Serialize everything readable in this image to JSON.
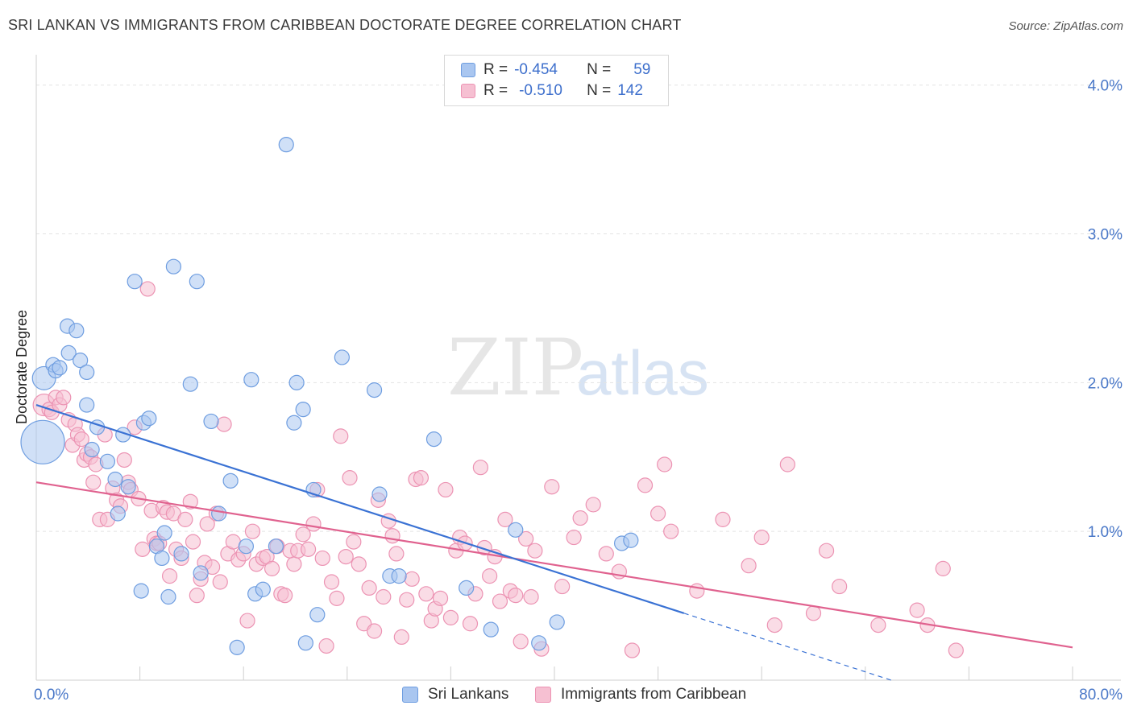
{
  "header": {
    "title": "SRI LANKAN VS IMMIGRANTS FROM CARIBBEAN DOCTORATE DEGREE CORRELATION CHART",
    "source": "Source: ZipAtlas.com"
  },
  "legend": {
    "series1": {
      "r_label": "R =",
      "r_value": "-0.454",
      "n_label": "N =",
      "n_value": "59"
    },
    "series2": {
      "r_label": "R =",
      "r_value": "-0.510",
      "n_label": "N =",
      "n_value": "142"
    }
  },
  "bottom_legend": {
    "series1": "Sri Lankans",
    "series2": "Immigrants from Caribbean"
  },
  "colors": {
    "blue_fill": "#a9c6f0",
    "blue_stroke": "#6e9de0",
    "blue_line": "#3a72d4",
    "pink_fill": "#f6c0d2",
    "pink_stroke": "#ec93b3",
    "pink_line": "#e0628f",
    "tick": "#4a78c8"
  },
  "watermark": {
    "zip": "ZIP",
    "atlas": "atlas"
  },
  "chart_data": {
    "type": "scatter",
    "title": "SRI LANKAN VS IMMIGRANTS FROM CARIBBEAN DOCTORATE DEGREE CORRELATION CHART",
    "xlabel": "",
    "ylabel": "Doctorate Degree",
    "xlim": [
      0,
      80
    ],
    "ylim": [
      0,
      4.15
    ],
    "x_tick_labels": [
      "0.0%",
      "80.0%"
    ],
    "y_ticks": [
      1,
      2,
      3,
      4
    ],
    "y_tick_labels": [
      "1.0%",
      "2.0%",
      "3.0%",
      "4.0%"
    ],
    "grid": true,
    "series": [
      {
        "name": "Sri Lankans",
        "r": -0.454,
        "n": 59,
        "trend": {
          "x0": 0,
          "y0": 1.85,
          "x1": 50,
          "y1": 0.45,
          "dash_to_x": 66,
          "dash_to_y": 0.0
        },
        "points": [
          [
            0.5,
            1.6,
            3
          ],
          [
            0.6,
            2.03,
            1.6
          ],
          [
            1.3,
            2.12,
            1
          ],
          [
            1.5,
            2.08,
            1
          ],
          [
            1.8,
            2.1,
            1
          ],
          [
            2.4,
            2.38,
            1
          ],
          [
            2.5,
            2.2,
            1
          ],
          [
            3.1,
            2.35,
            1
          ],
          [
            3.4,
            2.15,
            1
          ],
          [
            3.9,
            2.07,
            1
          ],
          [
            3.9,
            1.85,
            1
          ],
          [
            4.3,
            1.55,
            1
          ],
          [
            4.7,
            1.7,
            1
          ],
          [
            5.5,
            1.47,
            1
          ],
          [
            6.1,
            1.35,
            1
          ],
          [
            6.3,
            1.12,
            1
          ],
          [
            6.7,
            1.65,
            1
          ],
          [
            7.1,
            1.3,
            1
          ],
          [
            7.6,
            2.68,
            1
          ],
          [
            8.1,
            0.6,
            1
          ],
          [
            8.3,
            1.73,
            1
          ],
          [
            8.7,
            1.76,
            1
          ],
          [
            9.3,
            0.9,
            1
          ],
          [
            9.7,
            0.82,
            1
          ],
          [
            9.9,
            0.99,
            1
          ],
          [
            10.2,
            0.56,
            1
          ],
          [
            10.6,
            2.78,
            1
          ],
          [
            11.2,
            0.85,
            1
          ],
          [
            11.9,
            1.99,
            1
          ],
          [
            12.4,
            2.68,
            1
          ],
          [
            12.7,
            0.72,
            1
          ],
          [
            13.5,
            1.74,
            1
          ],
          [
            14.1,
            1.12,
            1
          ],
          [
            15.0,
            1.34,
            1
          ],
          [
            15.5,
            0.22,
            1
          ],
          [
            16.2,
            0.9,
            1
          ],
          [
            16.6,
            2.02,
            1
          ],
          [
            16.9,
            0.58,
            1
          ],
          [
            17.5,
            0.61,
            1
          ],
          [
            18.5,
            0.9,
            1
          ],
          [
            19.3,
            3.6,
            1
          ],
          [
            19.9,
            1.73,
            1
          ],
          [
            20.1,
            2.0,
            1
          ],
          [
            20.6,
            1.82,
            1
          ],
          [
            20.8,
            0.25,
            1
          ],
          [
            21.4,
            1.28,
            1
          ],
          [
            21.7,
            0.44,
            1
          ],
          [
            23.6,
            2.17,
            1
          ],
          [
            26.1,
            1.95,
            1
          ],
          [
            26.5,
            1.25,
            1
          ],
          [
            27.3,
            0.7,
            1
          ],
          [
            28.0,
            0.7,
            1
          ],
          [
            30.7,
            1.62,
            1
          ],
          [
            33.2,
            0.62,
            1
          ],
          [
            35.1,
            0.34,
            1
          ],
          [
            37.0,
            1.01,
            1
          ],
          [
            38.8,
            0.25,
            1
          ],
          [
            40.2,
            0.39,
            1
          ],
          [
            45.2,
            0.92,
            1
          ],
          [
            45.9,
            0.94,
            1
          ]
        ]
      },
      {
        "name": "Immigrants from Caribbean",
        "r": -0.51,
        "n": 142,
        "trend": {
          "x0": 0,
          "y0": 1.33,
          "x1": 80,
          "y1": 0.22
        },
        "points": [
          [
            0.6,
            1.85,
            1.5
          ],
          [
            1.0,
            1.82,
            1
          ],
          [
            1.2,
            1.8,
            1
          ],
          [
            1.5,
            1.9,
            1
          ],
          [
            1.8,
            1.85,
            1
          ],
          [
            2.1,
            1.9,
            1
          ],
          [
            2.5,
            1.75,
            1
          ],
          [
            2.8,
            1.58,
            1
          ],
          [
            3.0,
            1.72,
            1
          ],
          [
            3.2,
            1.65,
            1
          ],
          [
            3.5,
            1.62,
            1
          ],
          [
            3.7,
            1.48,
            1
          ],
          [
            3.9,
            1.52,
            1
          ],
          [
            4.2,
            1.5,
            1
          ],
          [
            4.4,
            1.33,
            1
          ],
          [
            4.6,
            1.45,
            1
          ],
          [
            4.9,
            1.08,
            1
          ],
          [
            5.3,
            1.65,
            1
          ],
          [
            5.5,
            1.08,
            1
          ],
          [
            5.9,
            1.29,
            1
          ],
          [
            6.2,
            1.21,
            1
          ],
          [
            6.5,
            1.17,
            1
          ],
          [
            6.8,
            1.48,
            1
          ],
          [
            7.1,
            1.33,
            1
          ],
          [
            7.3,
            1.28,
            1
          ],
          [
            7.6,
            1.7,
            1
          ],
          [
            7.9,
            1.22,
            1
          ],
          [
            8.2,
            0.88,
            1
          ],
          [
            8.6,
            2.63,
            1
          ],
          [
            8.9,
            1.14,
            1
          ],
          [
            9.1,
            0.95,
            1
          ],
          [
            9.3,
            0.92,
            1
          ],
          [
            9.5,
            0.92,
            1
          ],
          [
            9.8,
            1.16,
            1
          ],
          [
            10.1,
            1.13,
            1
          ],
          [
            10.3,
            0.7,
            1
          ],
          [
            10.6,
            1.12,
            1
          ],
          [
            10.8,
            0.88,
            1
          ],
          [
            11.2,
            0.82,
            1
          ],
          [
            11.5,
            1.08,
            1
          ],
          [
            11.9,
            1.2,
            1
          ],
          [
            12.1,
            0.93,
            1
          ],
          [
            12.4,
            0.57,
            1
          ],
          [
            12.7,
            0.68,
            1
          ],
          [
            13.0,
            0.79,
            1
          ],
          [
            13.2,
            1.05,
            1
          ],
          [
            13.6,
            0.76,
            1
          ],
          [
            13.9,
            1.12,
            1
          ],
          [
            14.2,
            0.66,
            1
          ],
          [
            14.5,
            1.72,
            1
          ],
          [
            14.8,
            0.85,
            1
          ],
          [
            15.2,
            0.93,
            1
          ],
          [
            15.6,
            0.81,
            1
          ],
          [
            16.0,
            0.85,
            1
          ],
          [
            16.3,
            0.4,
            1
          ],
          [
            16.7,
            1.0,
            1
          ],
          [
            17.0,
            0.78,
            1
          ],
          [
            17.5,
            0.82,
            1
          ],
          [
            17.8,
            0.83,
            1
          ],
          [
            18.2,
            0.75,
            1
          ],
          [
            18.6,
            0.9,
            1
          ],
          [
            18.9,
            0.58,
            1
          ],
          [
            19.2,
            0.57,
            1
          ],
          [
            19.6,
            0.87,
            1
          ],
          [
            19.9,
            0.78,
            1
          ],
          [
            20.2,
            0.87,
            1
          ],
          [
            20.6,
            0.98,
            1
          ],
          [
            21.0,
            0.88,
            1
          ],
          [
            21.4,
            1.05,
            1
          ],
          [
            21.7,
            1.28,
            1
          ],
          [
            22.1,
            0.82,
            1
          ],
          [
            22.4,
            0.23,
            1
          ],
          [
            22.8,
            0.66,
            1
          ],
          [
            23.2,
            0.55,
            1
          ],
          [
            23.5,
            1.64,
            1
          ],
          [
            23.9,
            0.83,
            1
          ],
          [
            24.2,
            1.36,
            1
          ],
          [
            24.5,
            0.93,
            1
          ],
          [
            24.9,
            0.78,
            1
          ],
          [
            25.3,
            0.38,
            1
          ],
          [
            25.7,
            0.62,
            1
          ],
          [
            26.1,
            0.33,
            1
          ],
          [
            26.4,
            1.21,
            1
          ],
          [
            26.8,
            0.56,
            1
          ],
          [
            27.2,
            1.07,
            1
          ],
          [
            27.5,
            0.97,
            1
          ],
          [
            27.8,
            0.85,
            1
          ],
          [
            28.2,
            0.29,
            1
          ],
          [
            28.6,
            0.54,
            1
          ],
          [
            29.0,
            0.68,
            1
          ],
          [
            29.3,
            1.35,
            1
          ],
          [
            29.7,
            1.36,
            1
          ],
          [
            30.1,
            0.58,
            1
          ],
          [
            30.5,
            0.4,
            1
          ],
          [
            30.8,
            0.48,
            1
          ],
          [
            31.2,
            0.55,
            1
          ],
          [
            31.6,
            1.28,
            1
          ],
          [
            32.0,
            0.42,
            1
          ],
          [
            32.4,
            0.87,
            1
          ],
          [
            32.7,
            0.96,
            1
          ],
          [
            33.1,
            0.92,
            1
          ],
          [
            33.5,
            0.38,
            1
          ],
          [
            33.9,
            0.58,
            1
          ],
          [
            34.3,
            1.43,
            1
          ],
          [
            34.6,
            0.89,
            1
          ],
          [
            35.0,
            0.7,
            1
          ],
          [
            35.4,
            0.83,
            1
          ],
          [
            35.8,
            0.53,
            1
          ],
          [
            36.2,
            1.08,
            1
          ],
          [
            36.6,
            0.6,
            1
          ],
          [
            37.0,
            0.57,
            1
          ],
          [
            37.4,
            0.26,
            1
          ],
          [
            37.8,
            0.95,
            1
          ],
          [
            38.2,
            0.56,
            1
          ],
          [
            38.5,
            0.87,
            1
          ],
          [
            39.0,
            0.21,
            1
          ],
          [
            39.8,
            1.3,
            1
          ],
          [
            40.6,
            0.63,
            1
          ],
          [
            41.5,
            0.96,
            1
          ],
          [
            42.0,
            1.09,
            1
          ],
          [
            43.0,
            1.18,
            1
          ],
          [
            44.0,
            0.85,
            1
          ],
          [
            45.0,
            0.73,
            1
          ],
          [
            46.0,
            0.2,
            1
          ],
          [
            47.0,
            1.31,
            1
          ],
          [
            48.0,
            1.12,
            1
          ],
          [
            48.5,
            1.45,
            1
          ],
          [
            49.0,
            1.0,
            1
          ],
          [
            51.0,
            0.6,
            1
          ],
          [
            53.0,
            1.08,
            1
          ],
          [
            55.0,
            0.77,
            1
          ],
          [
            56.0,
            0.96,
            1
          ],
          [
            57.0,
            0.37,
            1
          ],
          [
            58.0,
            1.45,
            1
          ],
          [
            60.0,
            0.45,
            1
          ],
          [
            61.0,
            0.87,
            1
          ],
          [
            62.0,
            0.63,
            1
          ],
          [
            65.0,
            0.37,
            1
          ],
          [
            68.0,
            0.47,
            1
          ],
          [
            68.8,
            0.37,
            1
          ],
          [
            70.0,
            0.75,
            1
          ],
          [
            71.0,
            0.2,
            1
          ]
        ]
      }
    ]
  }
}
